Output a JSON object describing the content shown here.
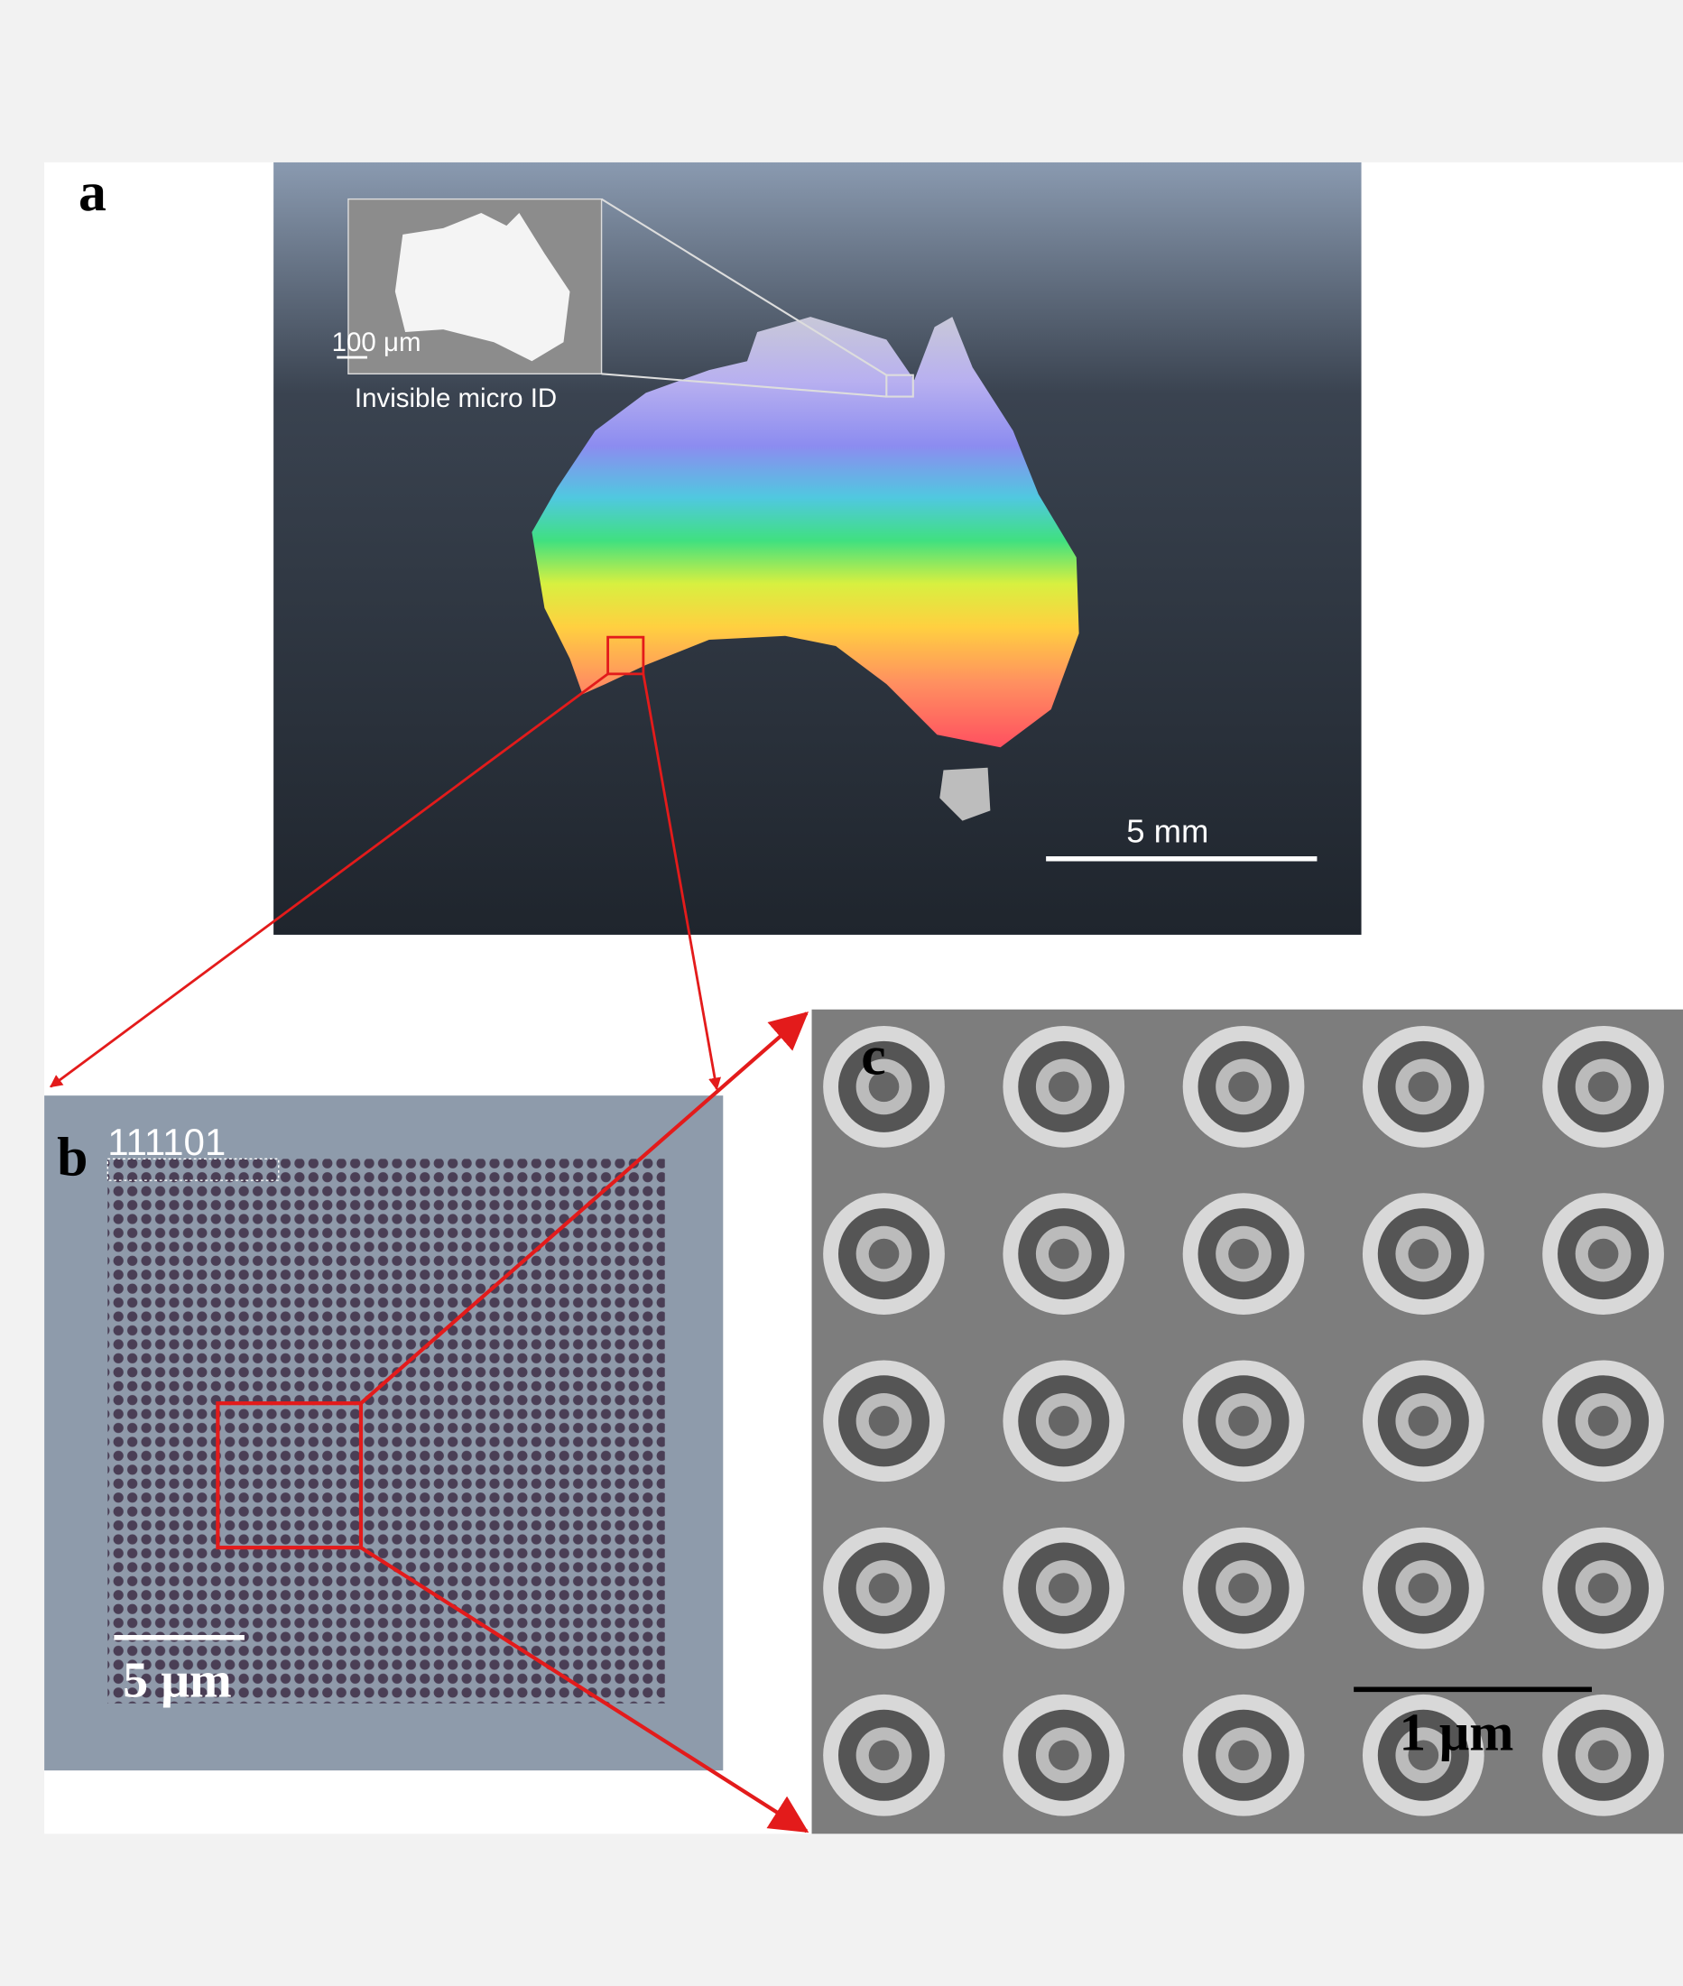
{
  "panels": {
    "a": {
      "label": "a",
      "scale_bar": "5 mm",
      "inset": {
        "scale_bar": "100 μm",
        "caption": "Invisible micro ID"
      }
    },
    "b": {
      "label": "b",
      "code": "111101",
      "scale_bar": "5 μm"
    },
    "c": {
      "label": "c",
      "scale_bar": "1 μm"
    }
  }
}
